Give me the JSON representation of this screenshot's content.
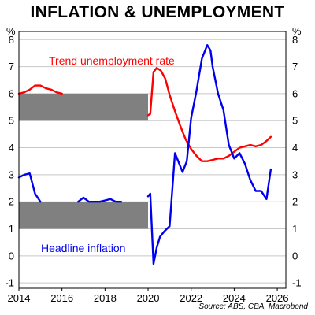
{
  "chart_data": {
    "type": "line",
    "title": "INFLATION & UNEMPLOYMENT",
    "y_unit_left": "%",
    "y_unit_right": "%",
    "xlim": [
      2014,
      2026.4
    ],
    "ylim": [
      -1.2,
      8.3
    ],
    "xticks": [
      2014,
      2016,
      2018,
      2020,
      2022,
      2024,
      2026
    ],
    "yticks": [
      -1,
      0,
      1,
      2,
      3,
      4,
      5,
      6,
      7,
      8
    ],
    "grid": true,
    "source": "Source: ABS, CBA, Macrobond",
    "annotations": {
      "unemployment_label": "Trend unemployment rate",
      "inflation_label": "Headline inflation"
    },
    "shaded_bands": [
      {
        "x": [
          2014,
          2020
        ],
        "y": [
          5,
          6
        ],
        "color": "#808080"
      },
      {
        "x": [
          2014,
          2020
        ],
        "y": [
          1,
          2
        ],
        "color": "#808080"
      }
    ],
    "series": [
      {
        "name": "Trend unemployment rate",
        "color": "#ff0000",
        "x": [
          2014,
          2014.25,
          2014.5,
          2014.75,
          2015,
          2015.25,
          2015.5,
          2015.75,
          2016,
          2020,
          2020.1,
          2020.25,
          2020.4,
          2020.6,
          2020.8,
          2021,
          2021.25,
          2021.5,
          2021.75,
          2022,
          2022.25,
          2022.5,
          2022.75,
          2023,
          2023.25,
          2023.5,
          2023.75,
          2024,
          2024.25,
          2024.5,
          2024.75,
          2025,
          2025.25,
          2025.5,
          2025.7
        ],
        "y": [
          6.0,
          6.05,
          6.15,
          6.3,
          6.3,
          6.2,
          6.15,
          6.05,
          6.0,
          5.2,
          5.25,
          6.8,
          6.95,
          6.85,
          6.55,
          5.95,
          5.35,
          4.8,
          4.3,
          3.95,
          3.7,
          3.5,
          3.5,
          3.55,
          3.6,
          3.6,
          3.7,
          3.85,
          4.0,
          4.05,
          4.1,
          4.05,
          4.1,
          4.25,
          4.4
        ]
      },
      {
        "name": "Headline inflation",
        "color": "#0000ee",
        "x": [
          2014,
          2014.25,
          2014.5,
          2014.75,
          2015,
          2016.75,
          2017,
          2017.25,
          2017.5,
          2017.75,
          2018,
          2018.25,
          2018.5,
          2018.75,
          2020,
          2020.1,
          2020.25,
          2020.4,
          2020.55,
          2020.75,
          2021,
          2021.25,
          2021.4,
          2021.6,
          2021.8,
          2022,
          2022.25,
          2022.5,
          2022.75,
          2022.9,
          2023,
          2023.25,
          2023.5,
          2023.75,
          2024,
          2024.25,
          2024.5,
          2024.75,
          2025,
          2025.25,
          2025.5,
          2025.7
        ],
        "y": [
          2.9,
          3.0,
          3.05,
          2.3,
          2.0,
          2.0,
          2.15,
          2.0,
          2.0,
          2.0,
          2.05,
          2.1,
          2.0,
          2.0,
          2.2,
          2.3,
          -0.3,
          0.3,
          0.7,
          0.9,
          1.1,
          3.8,
          3.5,
          3.1,
          3.5,
          5.1,
          6.1,
          7.3,
          7.8,
          7.6,
          7.0,
          6.0,
          5.4,
          4.1,
          3.6,
          3.8,
          3.4,
          2.8,
          2.4,
          2.4,
          2.1,
          3.2
        ]
      }
    ]
  }
}
